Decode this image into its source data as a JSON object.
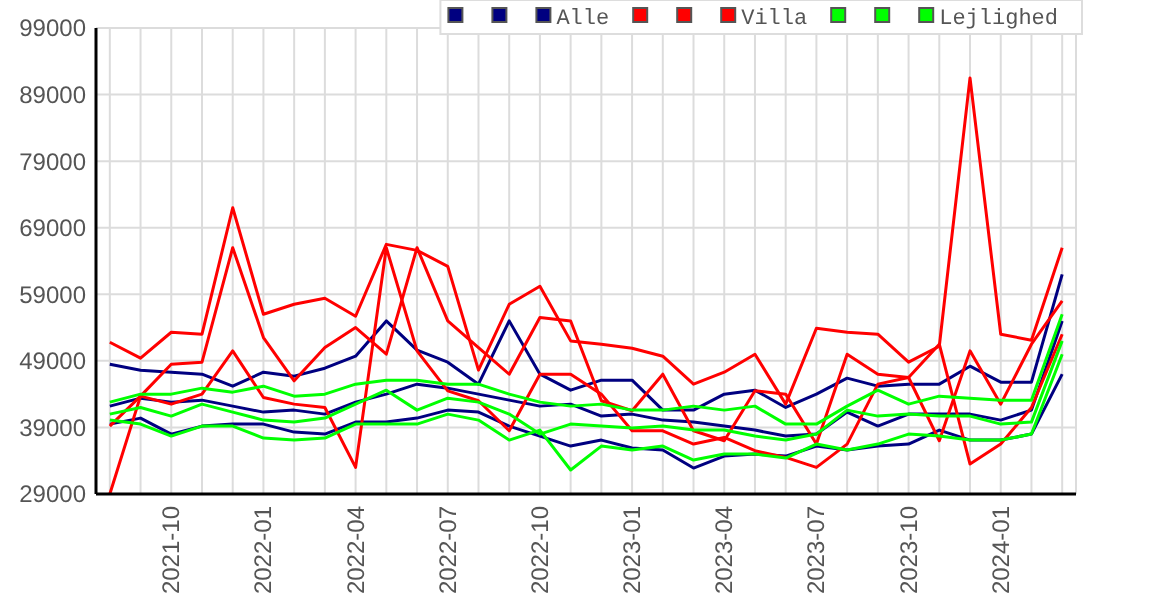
{
  "chart_data": {
    "type": "line",
    "categories": [
      null,
      null,
      "2021-10",
      null,
      null,
      "2022-01",
      null,
      null,
      "2022-04",
      null,
      null,
      "2022-07",
      null,
      null,
      "2022-10",
      null,
      null,
      "2023-01",
      null,
      null,
      "2023-04",
      null,
      null,
      "2023-07",
      null,
      null,
      "2023-10",
      null,
      null,
      "2024-01",
      null,
      null
    ],
    "ylim": [
      29000,
      99000
    ],
    "yticks": [
      29000,
      39000,
      49000,
      59000,
      69000,
      79000,
      89000,
      99000
    ],
    "grid": true,
    "legend": "top right",
    "marker": "none",
    "series": [
      {
        "color": "#000080",
        "values": [
          48500,
          47600,
          47300,
          47000,
          45200,
          47300,
          46700,
          47900,
          49700,
          55000,
          50600,
          48800,
          45500,
          55000,
          47000,
          44600,
          46100,
          46100,
          41600,
          41600,
          44000,
          44600,
          42000,
          44000,
          46400,
          45200,
          45500,
          45500,
          48200,
          45800,
          45800,
          62000
        ]
      },
      {
        "color": "#000080",
        "values": [
          42200,
          43400,
          42800,
          43100,
          42200,
          41300,
          41600,
          41000,
          42800,
          44000,
          45500,
          44900,
          44000,
          43100,
          42200,
          42500,
          40700,
          41000,
          40100,
          39800,
          39200,
          38600,
          37700,
          38000,
          41300,
          39200,
          41000,
          41000,
          41000,
          40100,
          41600,
          55000
        ]
      },
      {
        "name": "Alle",
        "color": "#000080",
        "values": [
          39500,
          40400,
          38000,
          39200,
          39500,
          39500,
          38300,
          38000,
          39800,
          39800,
          40400,
          41600,
          41300,
          39200,
          37700,
          36200,
          37100,
          35900,
          35600,
          32900,
          34700,
          35000,
          34700,
          36200,
          35600,
          36200,
          36500,
          38600,
          37100,
          37100,
          38000,
          47000
        ]
      },
      {
        "color": "#ff0000",
        "values": [
          51800,
          49400,
          53300,
          53000,
          72000,
          56000,
          57500,
          58400,
          55700,
          66500,
          65600,
          63200,
          47600,
          57500,
          60200,
          52000,
          51500,
          50900,
          49700,
          45500,
          47300,
          50000,
          42500,
          53900,
          53300,
          53000,
          48800,
          51200,
          91500,
          53000,
          52100,
          66000
        ]
      },
      {
        "color": "#ff0000",
        "values": [
          39200,
          43700,
          48500,
          48800,
          66000,
          52500,
          46000,
          51000,
          54000,
          50000,
          66000,
          55000,
          51000,
          47000,
          55500,
          55000,
          43000,
          41500,
          47000,
          38500,
          37000,
          44500,
          44000,
          36500,
          50000,
          47000,
          46500,
          37000,
          50500,
          42500,
          51500,
          58000
        ]
      },
      {
        "name": "Villa",
        "color": "#ff0000",
        "values": [
          29000,
          43700,
          42500,
          44000,
          50500,
          43500,
          42500,
          42000,
          33000,
          66000,
          50500,
          44500,
          43000,
          38500,
          47000,
          47000,
          44000,
          38500,
          38500,
          36500,
          37500,
          35500,
          34500,
          33000,
          36500,
          45500,
          46500,
          51500,
          33500,
          36500,
          42000,
          53000
        ]
      },
      {
        "color": "#00ff00",
        "values": [
          42800,
          44000,
          44000,
          44900,
          44300,
          45200,
          43700,
          44000,
          45500,
          46100,
          46100,
          45500,
          45500,
          44000,
          42800,
          42200,
          42500,
          41600,
          41600,
          42200,
          41600,
          42200,
          39500,
          39500,
          42200,
          44600,
          42500,
          43700,
          43400,
          43100,
          43100,
          56000
        ]
      },
      {
        "color": "#00ff00",
        "values": [
          41000,
          42000,
          40700,
          42500,
          41300,
          40100,
          39800,
          40400,
          42500,
          44600,
          41600,
          43400,
          42800,
          41000,
          38000,
          39500,
          39200,
          38900,
          39200,
          38600,
          38600,
          37700,
          37100,
          38000,
          41600,
          40700,
          41000,
          40700,
          40700,
          39500,
          39800,
          52000
        ]
      },
      {
        "name": "Lejlighed",
        "color": "#00ff00",
        "values": [
          40100,
          39500,
          37700,
          39200,
          39200,
          37400,
          37100,
          37400,
          39500,
          39500,
          39500,
          41000,
          40100,
          37100,
          38600,
          32600,
          36200,
          35600,
          36200,
          34100,
          35000,
          35000,
          34400,
          36500,
          35600,
          36500,
          38000,
          37700,
          37100,
          37100,
          38000,
          50000
        ]
      }
    ]
  }
}
